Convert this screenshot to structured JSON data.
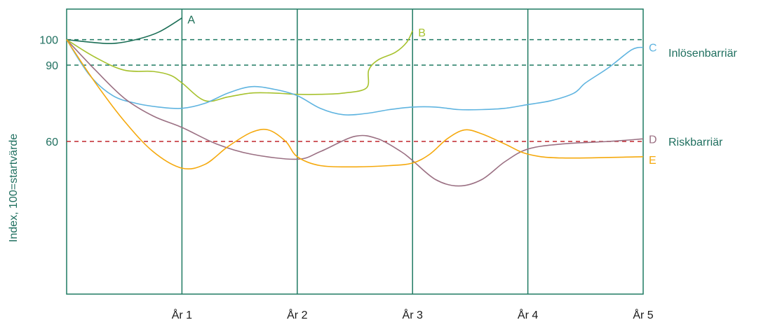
{
  "chart_data": {
    "type": "line",
    "ylabel": "Index, 100=startvärde",
    "categories": [
      "År 1",
      "År 2",
      "År 3",
      "År 4",
      "År 5"
    ],
    "x_range": [
      0,
      5
    ],
    "y_range": [
      0,
      112
    ],
    "y_ticks": [
      60,
      90,
      100
    ],
    "grid": "vertical lines at each year",
    "barriers": [
      {
        "label": "Inlösenbarriär",
        "levels": [
          100,
          90
        ],
        "color": "#1f7a62",
        "style": "dashed"
      },
      {
        "label": "Riskbarriär",
        "levels": [
          60
        ],
        "color": "#c0262d",
        "style": "dashed"
      }
    ],
    "series": [
      {
        "name": "A",
        "color": "#1b6e56",
        "points": [
          [
            0,
            100
          ],
          [
            0.2,
            99
          ],
          [
            0.4,
            98.5
          ],
          [
            0.6,
            100
          ],
          [
            0.8,
            103
          ],
          [
            1.0,
            108.5
          ]
        ]
      },
      {
        "name": "B",
        "color": "#a7c22e",
        "points": [
          [
            0,
            100
          ],
          [
            0.25,
            93
          ],
          [
            0.5,
            88
          ],
          [
            0.75,
            87.5
          ],
          [
            0.9,
            86
          ],
          [
            1.0,
            83
          ],
          [
            1.2,
            76
          ],
          [
            1.4,
            77.5
          ],
          [
            1.6,
            79
          ],
          [
            1.8,
            79
          ],
          [
            2.0,
            78.5
          ],
          [
            2.2,
            78.5
          ],
          [
            2.4,
            79
          ],
          [
            2.6,
            81
          ],
          [
            2.62,
            88
          ],
          [
            2.7,
            92
          ],
          [
            2.85,
            95
          ],
          [
            2.95,
            99
          ],
          [
            3.0,
            103.5
          ]
        ]
      },
      {
        "name": "C",
        "color": "#5fb4e0",
        "points": [
          [
            0,
            100
          ],
          [
            0.2,
            86
          ],
          [
            0.4,
            78
          ],
          [
            0.6,
            75
          ],
          [
            0.8,
            73.5
          ],
          [
            1.0,
            73
          ],
          [
            1.2,
            75
          ],
          [
            1.4,
            79
          ],
          [
            1.6,
            81.5
          ],
          [
            1.8,
            80.5
          ],
          [
            2.0,
            78
          ],
          [
            2.2,
            73
          ],
          [
            2.4,
            70.5
          ],
          [
            2.6,
            71
          ],
          [
            2.8,
            72.5
          ],
          [
            3.0,
            73.5
          ],
          [
            3.2,
            73.5
          ],
          [
            3.4,
            72.5
          ],
          [
            3.6,
            72.5
          ],
          [
            3.8,
            73
          ],
          [
            4.0,
            74.5
          ],
          [
            4.2,
            76
          ],
          [
            4.4,
            79
          ],
          [
            4.5,
            83
          ],
          [
            4.7,
            89
          ],
          [
            4.9,
            96
          ],
          [
            5.0,
            97
          ]
        ]
      },
      {
        "name": "D",
        "color": "#9b7083",
        "points": [
          [
            0,
            100
          ],
          [
            0.25,
            88
          ],
          [
            0.5,
            77
          ],
          [
            0.75,
            70
          ],
          [
            1.0,
            65.5
          ],
          [
            1.3,
            59
          ],
          [
            1.6,
            55
          ],
          [
            2.0,
            53
          ],
          [
            2.2,
            56
          ],
          [
            2.5,
            62
          ],
          [
            2.7,
            61
          ],
          [
            2.9,
            56
          ],
          [
            3.0,
            52.5
          ],
          [
            3.2,
            45
          ],
          [
            3.4,
            42.5
          ],
          [
            3.6,
            45
          ],
          [
            3.8,
            52
          ],
          [
            4.0,
            57
          ],
          [
            4.3,
            59
          ],
          [
            4.7,
            60
          ],
          [
            5.0,
            61
          ]
        ]
      },
      {
        "name": "E",
        "color": "#f5a90d",
        "points": [
          [
            0,
            100
          ],
          [
            0.25,
            83
          ],
          [
            0.5,
            68
          ],
          [
            0.75,
            56
          ],
          [
            1.0,
            49.5
          ],
          [
            1.2,
            51
          ],
          [
            1.4,
            58
          ],
          [
            1.6,
            63.5
          ],
          [
            1.75,
            64.5
          ],
          [
            1.9,
            60
          ],
          [
            2.0,
            54
          ],
          [
            2.2,
            50.5
          ],
          [
            2.5,
            50
          ],
          [
            2.8,
            50.5
          ],
          [
            3.0,
            51.5
          ],
          [
            3.15,
            55
          ],
          [
            3.3,
            61
          ],
          [
            3.45,
            64.5
          ],
          [
            3.6,
            63
          ],
          [
            3.8,
            59
          ],
          [
            4.0,
            55
          ],
          [
            4.3,
            53.5
          ],
          [
            5.0,
            54
          ]
        ]
      }
    ]
  }
}
